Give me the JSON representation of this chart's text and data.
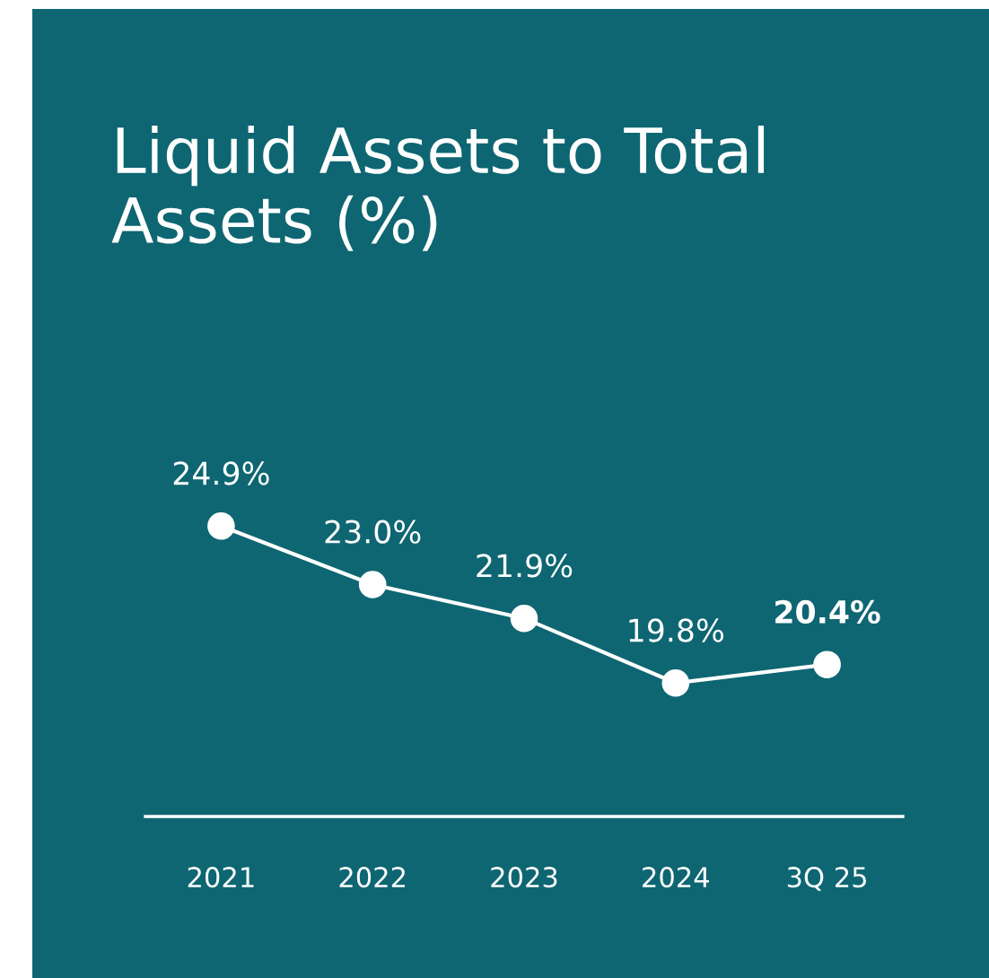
{
  "chart_data": {
    "type": "line",
    "title": "Liquid Assets to Total Assets (%)",
    "categories": [
      "2021",
      "2022",
      "2023",
      "2024",
      "3Q 25"
    ],
    "series": [
      {
        "color": "#ffffff",
        "values": [
          24.9,
          23.0,
          21.9,
          19.8,
          20.4
        ],
        "value_labels": [
          "24.9%",
          "23.0%",
          "21.9%",
          "19.8%",
          "20.4%"
        ]
      }
    ],
    "marker": "circle",
    "line_style": "solid",
    "grid": false,
    "legend": false,
    "tick_labels": "x"
  }
}
